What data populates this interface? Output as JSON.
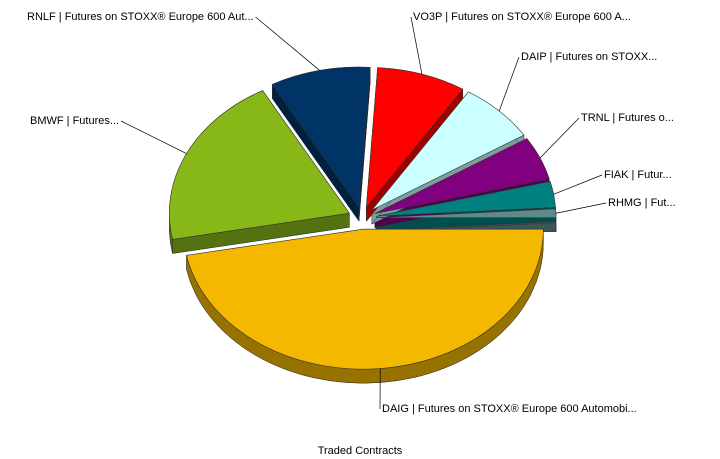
{
  "chart_data": {
    "type": "pie",
    "title": "Traded Contracts",
    "categories": [
      "RHMG | Fut...",
      "FIAK | Futur...",
      "TRNL | Futures o...",
      "DAIP | Futures on STOXX...",
      "VO3P | Futures on STOXX® Europe 600 A...",
      "RNLF | Futures on STOXX® Europe 600 Aut...",
      "BMWF | Futures...",
      "DAIG | Futures on STOXX® Europe 600 Automobi..."
    ],
    "values": [
      1,
      3,
      5,
      7,
      8,
      9,
      20,
      47
    ],
    "colors": [
      "#5f8a8a",
      "#008080",
      "#800080",
      "#ccffff",
      "#ff0000",
      "#003366",
      "#88b818",
      "#f5b800"
    ]
  }
}
